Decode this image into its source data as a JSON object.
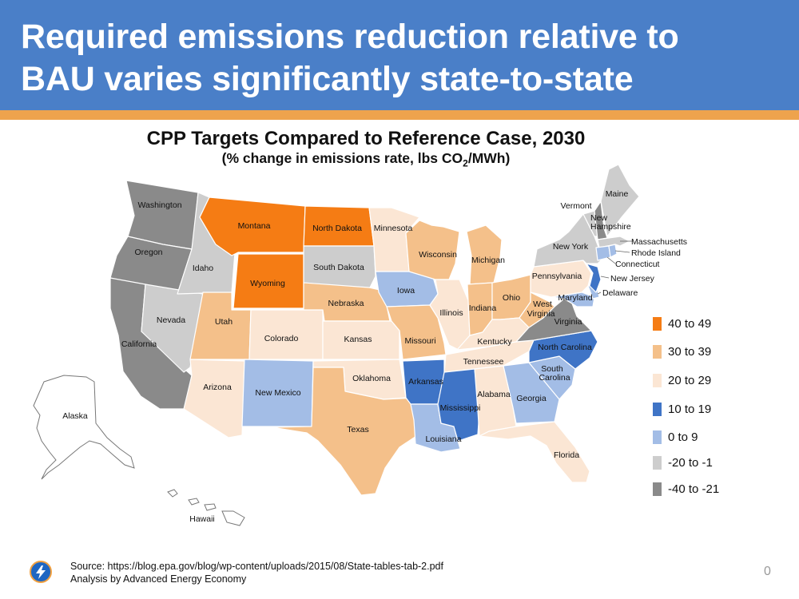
{
  "slide": {
    "title_line1": "Required emissions reduction relative to",
    "title_line2": "BAU varies significantly state-to-state",
    "page_number": "0"
  },
  "map": {
    "title": "CPP Targets Compared to Reference Case, 2030",
    "subtitle_pre": "(% change in emissions rate, lbs CO",
    "subtitle_sub": "2",
    "subtitle_post": "/MWh)"
  },
  "colors": {
    "c40_49": "#f57c14",
    "c30_39": "#f4c08a",
    "c20_29": "#fbe6d4",
    "c10_19": "#3f74c6",
    "c0_9": "#a3bde6",
    "cneg1_20": "#cdcdcd",
    "cneg21_40": "#8a8a8a"
  },
  "legend": [
    {
      "label": "40 to 49",
      "color": "#f57c14"
    },
    {
      "label": "30 to 39",
      "color": "#f4c08a"
    },
    {
      "label": "20 to 29",
      "color": "#fbe6d4"
    },
    {
      "label": "10 to 19",
      "color": "#3f74c6"
    },
    {
      "label": "0 to 9",
      "color": "#a3bde6"
    },
    {
      "label": "-20 to -1",
      "color": "#cdcdcd"
    },
    {
      "label": "-40 to -21",
      "color": "#8a8a8a"
    }
  ],
  "state_categories": {
    "Washington": "-40 to -21",
    "Oregon": "-40 to -21",
    "California": "-40 to -21",
    "Idaho": "-20 to -1",
    "Nevada": "-20 to -1",
    "Montana": "40 to 49",
    "Wyoming": "40 to 49",
    "North Dakota": "40 to 49",
    "Utah": "30 to 39",
    "Colorado": "20 to 29",
    "Arizona": "20 to 29",
    "New Mexico": "0 to 9",
    "South Dakota": "-20 to -1",
    "Nebraska": "30 to 39",
    "Kansas": "20 to 29",
    "Oklahoma": "20 to 29",
    "Texas": "30 to 39",
    "Minnesota": "20 to 29",
    "Iowa": "0 to 9",
    "Missouri": "30 to 39",
    "Arkansas": "10 to 19",
    "Louisiana": "0 to 9",
    "Wisconsin": "30 to 39",
    "Illinois": "20 to 29",
    "Michigan": "30 to 39",
    "Indiana": "30 to 39",
    "Ohio": "30 to 39",
    "Kentucky": "20 to 29",
    "Tennessee": "20 to 29",
    "Mississippi": "10 to 19",
    "Alabama": "20 to 29",
    "Georgia": "0 to 9",
    "Florida": "20 to 29",
    "South Carolina": "0 to 9",
    "North Carolina": "10 to 19",
    "Virginia": "-40 to -21",
    "West Virginia": "30 to 39",
    "Maryland": "0 to 9",
    "Delaware": "0 to 9",
    "Pennsylvania": "20 to 29",
    "New Jersey": "10 to 19",
    "New York": "-20 to -1",
    "Vermont": "-20 to -1",
    "New Hampshire": "-40 to -21",
    "Maine": "-20 to -1",
    "Massachusetts": "-20 to -1",
    "Rhode Island": "0 to 9",
    "Connecticut": "0 to 9"
  },
  "labels": {
    "Washington": "Washington",
    "Oregon": "Oregon",
    "California": "California",
    "Idaho": "Idaho",
    "Nevada": "Nevada",
    "Montana": "Montana",
    "Wyoming": "Wyoming",
    "North_Dakota": "North Dakota",
    "Utah": "Utah",
    "Colorado": "Colorado",
    "Arizona": "Arizona",
    "New_Mexico": "New Mexico",
    "South_Dakota": "South Dakota",
    "Nebraska": "Nebraska",
    "Kansas": "Kansas",
    "Oklahoma": "Oklahoma",
    "Texas": "Texas",
    "Minnesota": "Minnesota",
    "Iowa": "Iowa",
    "Missouri": "Missouri",
    "Arkansas": "Arkansas",
    "Louisiana": "Louisiana",
    "Wisconsin": "Wisconsin",
    "Illinois": "Illinois",
    "Michigan": "Michigan",
    "Indiana": "Indiana",
    "Ohio": "Ohio",
    "Kentucky": "Kentucky",
    "Tennessee": "Tennessee",
    "Mississippi": "Mississippi",
    "Alabama": "Alabama",
    "Georgia": "Georgia",
    "Florida": "Florida",
    "South_Carolina_1": "South",
    "South_Carolina_2": "Carolina",
    "North_Carolina": "North Carolina",
    "Virginia": "Virginia",
    "West_Virginia_1": "West",
    "West_Virginia_2": "Virginia",
    "Maryland": "Maryland",
    "Delaware": "Delaware",
    "Pennsylvania": "Pennsylvania",
    "New_Jersey": "New Jersey",
    "New_York": "New York",
    "Vermont": "Vermont",
    "New_Hampshire_1": "New",
    "New_Hampshire_2": "Hampshire",
    "Maine": "Maine",
    "Massachusetts": "Massachusetts",
    "Rhode_Island": "Rhode Island",
    "Connecticut": "Connecticut",
    "Alaska": "Alaska",
    "Hawaii": "Hawaii"
  },
  "footer": {
    "source": "Source: https://blog.epa.gov/blog/wp-content/uploads/2015/08/State-tables-tab-2.pdf",
    "analysis": "Analysis by Advanced Energy Economy"
  }
}
